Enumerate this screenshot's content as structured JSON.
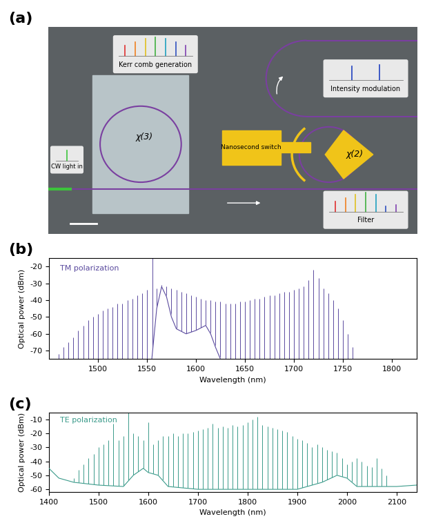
{
  "diagram": {
    "panel_label": "(a)",
    "nodes": [
      {
        "label": "CW light in"
      },
      {
        "label": "χ(3)"
      },
      {
        "label": "Kerr comb generation"
      },
      {
        "label": "Nanosecond switch"
      },
      {
        "label": "χ(2)"
      },
      {
        "label": "Intensity modulation"
      },
      {
        "label": "Filter"
      }
    ]
  },
  "chart_data": [
    {
      "type": "stem",
      "panel_label": "(b)",
      "annotations": [
        "TM polarization"
      ],
      "color": "#5a4a9e",
      "x_label": "Wavelength (nm)",
      "y_label": "Optical power (dBm)",
      "xlim": [
        1450,
        1825
      ],
      "xticks": [
        1500,
        1550,
        1600,
        1650,
        1700,
        1750,
        1800
      ],
      "ylim": [
        -75,
        -15
      ],
      "yticks": [
        -70,
        -60,
        -50,
        -40,
        -30,
        -20
      ],
      "series": [
        {
          "type": "stem",
          "x": [
            1460,
            1465,
            1470,
            1475,
            1480,
            1485,
            1490,
            1495,
            1500,
            1505,
            1510,
            1515,
            1520,
            1525,
            1530,
            1535,
            1540,
            1545,
            1550,
            1556,
            1560,
            1565,
            1570,
            1575,
            1580,
            1585,
            1590,
            1595,
            1600,
            1605,
            1610,
            1615,
            1620,
            1625,
            1630,
            1635,
            1640,
            1645,
            1650,
            1655,
            1660,
            1665,
            1670,
            1675,
            1680,
            1685,
            1690,
            1695,
            1700,
            1705,
            1710,
            1715,
            1720,
            1725,
            1730,
            1735,
            1740,
            1745,
            1750,
            1755,
            1760
          ],
          "values": [
            -72,
            -68,
            -65,
            -62,
            -58,
            -55,
            -52,
            -50,
            -48,
            -46,
            -45,
            -44,
            -42,
            -42,
            -40,
            -39,
            -37,
            -36,
            -34,
            -15,
            -33,
            -31,
            -32,
            -33,
            -34,
            -35,
            -36,
            -37,
            -38,
            -39,
            -40,
            -40,
            -41,
            -41,
            -42,
            -42,
            -42,
            -41,
            -41,
            -40,
            -39,
            -39,
            -38,
            -37,
            -37,
            -36,
            -35,
            -35,
            -34,
            -33,
            -32,
            -28,
            -22,
            -27,
            -33,
            -36,
            -40,
            -45,
            -52,
            -60,
            -68
          ]
        },
        {
          "type": "line",
          "x": [
            1555,
            1560,
            1565,
            1570,
            1575,
            1580,
            1590,
            1600,
            1610,
            1615,
            1620,
            1625
          ],
          "values": [
            -75,
            -45,
            -32,
            -38,
            -50,
            -57,
            -60,
            -58,
            -55,
            -60,
            -68,
            -75
          ]
        }
      ]
    },
    {
      "type": "stem",
      "panel_label": "(c)",
      "annotations": [
        "TE polarization"
      ],
      "color": "#3a9a8a",
      "x_label": "Wavelength (nm)",
      "y_label": "Optical power (dBm)",
      "xlim": [
        1400,
        2140
      ],
      "xticks": [
        1400,
        1500,
        1600,
        1700,
        1800,
        1900,
        2000,
        2100
      ],
      "ylim": [
        -62,
        -5
      ],
      "yticks": [
        -60,
        -50,
        -40,
        -30,
        -20,
        -10
      ],
      "series": [
        {
          "type": "stem",
          "x": [
            1440,
            1450,
            1460,
            1470,
            1480,
            1490,
            1500,
            1510,
            1520,
            1530,
            1540,
            1550,
            1560,
            1570,
            1580,
            1590,
            1600,
            1610,
            1620,
            1630,
            1640,
            1650,
            1660,
            1670,
            1680,
            1690,
            1700,
            1710,
            1720,
            1730,
            1740,
            1750,
            1760,
            1770,
            1780,
            1790,
            1800,
            1810,
            1820,
            1830,
            1840,
            1850,
            1860,
            1870,
            1880,
            1890,
            1900,
            1910,
            1920,
            1930,
            1940,
            1950,
            1960,
            1970,
            1980,
            1990,
            2000,
            2010,
            2020,
            2030,
            2040,
            2050,
            2060,
            2070,
            2080
          ],
          "values": [
            -55,
            -52,
            -46,
            -42,
            -38,
            -35,
            -30,
            -28,
            -25,
            -13,
            -25,
            -22,
            -5,
            -20,
            -22,
            -25,
            -12,
            -28,
            -25,
            -22,
            -22,
            -20,
            -22,
            -20,
            -20,
            -19,
            -18,
            -17,
            -16,
            -13,
            -16,
            -15,
            -16,
            -14,
            -15,
            -14,
            -12,
            -10,
            -8,
            -14,
            -15,
            -16,
            -17,
            -18,
            -19,
            -22,
            -24,
            -25,
            -27,
            -30,
            -28,
            -30,
            -32,
            -33,
            -34,
            -38,
            -42,
            -40,
            -38,
            -40,
            -43,
            -44,
            -38,
            -45,
            -50
          ]
        },
        {
          "type": "line",
          "x": [
            1400,
            1420,
            1450,
            1500,
            1550,
            1570,
            1590,
            1600,
            1620,
            1640,
            1700,
            1900,
            1950,
            1980,
            2000,
            2020,
            2100,
            2140
          ],
          "values": [
            -45,
            -52,
            -55,
            -57,
            -58,
            -50,
            -45,
            -48,
            -50,
            -58,
            -60,
            -60,
            -55,
            -50,
            -52,
            -58,
            -58,
            -57
          ]
        }
      ]
    }
  ]
}
